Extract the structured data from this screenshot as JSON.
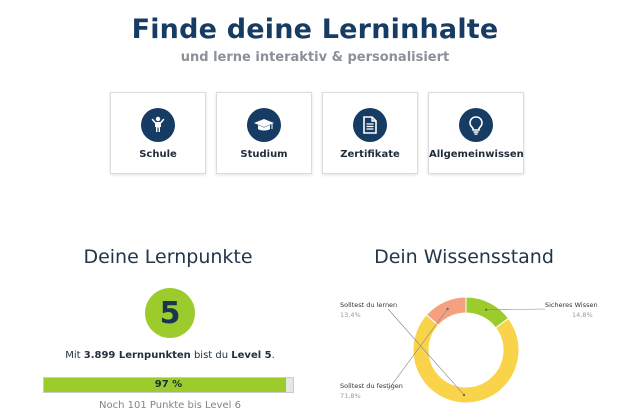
{
  "hero": {
    "title": "Finde deine Lerninhalte",
    "subtitle": "und lerne interaktiv & personalisiert"
  },
  "categories": [
    {
      "label": "Schule",
      "icon": "child-icon"
    },
    {
      "label": "Studium",
      "icon": "graduation-cap-icon"
    },
    {
      "label": "Zertifikate",
      "icon": "certificate-document-icon"
    },
    {
      "label": "Allgemeinwissen",
      "icon": "lightbulb-icon"
    }
  ],
  "lernpunkte": {
    "heading": "Deine Lernpunkte",
    "level": "5",
    "text_prefix": "Mit ",
    "points": "3.899 Lernpunkten",
    "text_middle": " bist du ",
    "level_text": "Level 5",
    "text_suffix": ".",
    "progress_percent": 97,
    "progress_label": "97 %",
    "remaining_text": "Noch 101 Punkte bis Level 6"
  },
  "wissensstand": {
    "heading": "Dein Wissensstand"
  },
  "chart_data": {
    "type": "pie",
    "donut": true,
    "slices": [
      {
        "label": "Sicheres Wissen",
        "value": 14.8,
        "value_label": "14,8%",
        "color": "#9ccc2c"
      },
      {
        "label": "Solltest du festigen",
        "value": 71.8,
        "value_label": "71,8%",
        "color": "#f9d44a"
      },
      {
        "label": "Solltest du lernen",
        "value": 13.4,
        "value_label": "13,4%",
        "color": "#f5a07e"
      }
    ]
  },
  "colors": {
    "primary": "#173c64",
    "accent_green": "#9ccc2c",
    "muted": "#8a9198"
  }
}
